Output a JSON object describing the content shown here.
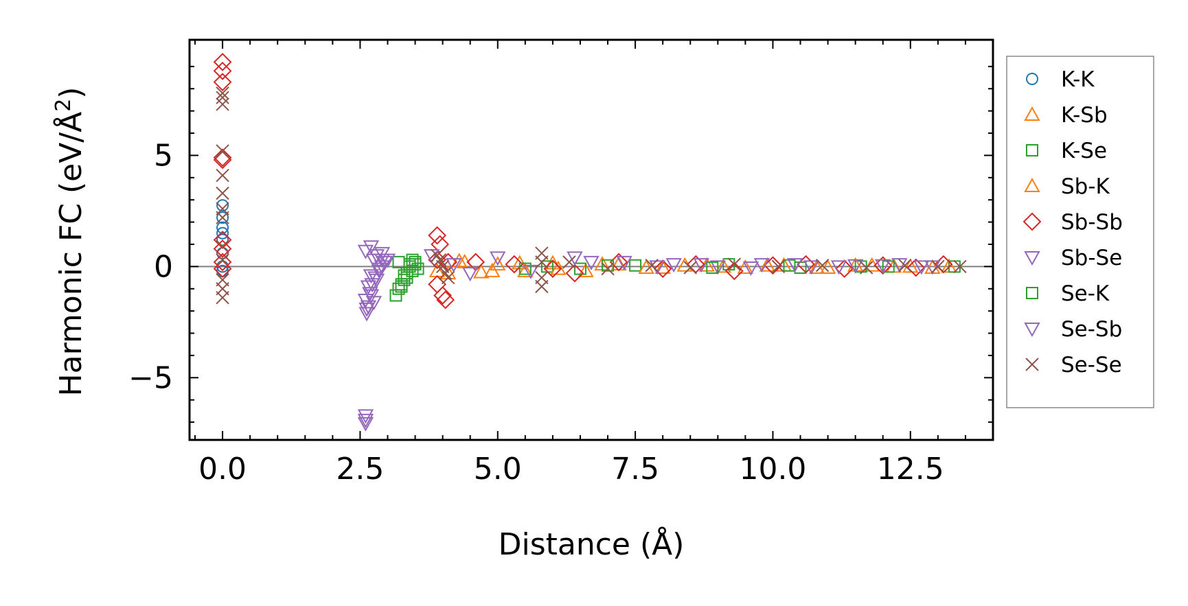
{
  "chart_data": {
    "type": "scatter",
    "title": "",
    "xlabel": "Distance (Å)",
    "ylabel_main": "Harmonic FC (eV/Å",
    "ylabel_sup": "2",
    "ylabel_close": ")",
    "xlim": [
      -0.6,
      14.0
    ],
    "ylim": [
      -7.8,
      10.2
    ],
    "xticks": [
      0.0,
      2.5,
      5.0,
      7.5,
      10.0,
      12.5
    ],
    "xtick_labels": [
      "0.0",
      "2.5",
      "5.0",
      "7.5",
      "10.0",
      "12.5"
    ],
    "yticks": [
      -5,
      0,
      5
    ],
    "ytick_labels": [
      "−5",
      "0",
      "5"
    ],
    "zero_line": 0,
    "legend_position": "outside-right",
    "series": [
      {
        "name": "K-K",
        "marker": "circle",
        "color": "#1f77b4",
        "x": [
          0,
          0,
          0,
          0,
          0,
          0,
          0,
          0
        ],
        "y": [
          2.75,
          2.2,
          1.75,
          1.5,
          1.2,
          0.6,
          0.0,
          -0.2
        ]
      },
      {
        "name": "K-Sb",
        "marker": "triangle-up",
        "color": "#ff7f0e",
        "x": [
          3.9,
          4.1,
          4.4,
          4.7,
          5.0,
          5.5,
          6.0,
          6.6,
          7.2,
          8.0,
          8.8,
          9.5,
          10.2,
          11.0,
          11.8,
          12.5,
          13.2
        ],
        "y": [
          -0.2,
          -0.3,
          0.2,
          -0.25,
          0.1,
          -0.2,
          0.15,
          -0.2,
          0.1,
          -0.05,
          0.05,
          -0.05,
          0.05,
          -0.05,
          0.05,
          0.0,
          0.0
        ]
      },
      {
        "name": "K-Se",
        "marker": "square",
        "color": "#2ca02c",
        "x": [
          3.15,
          3.2,
          3.25,
          3.3,
          3.35,
          3.4,
          3.45,
          3.5,
          3.55,
          3.2,
          3.3,
          3.4,
          5.9,
          6.5,
          7.5,
          9.2,
          10.5,
          11.6,
          13.3
        ],
        "y": [
          -1.3,
          -1.0,
          -0.8,
          -0.6,
          -0.3,
          0.1,
          0.3,
          0.2,
          -0.1,
          0.2,
          -0.4,
          0.0,
          0.0,
          -0.1,
          0.05,
          0.1,
          -0.05,
          0.0,
          0.0
        ]
      },
      {
        "name": "Sb-K",
        "marker": "triangle-up",
        "color": "#ff7f0e",
        "x": [
          4.3,
          4.9,
          5.4,
          6.1,
          6.9,
          7.7,
          8.4,
          9.1,
          9.9,
          10.8,
          11.5,
          12.2,
          12.9
        ],
        "y": [
          0.25,
          -0.2,
          0.15,
          -0.1,
          0.1,
          -0.05,
          0.05,
          0.0,
          0.05,
          -0.05,
          0.05,
          0.0,
          -0.05
        ]
      },
      {
        "name": "Sb-Sb",
        "marker": "diamond",
        "color": "#d62728",
        "x": [
          0,
          0,
          0,
          0,
          0,
          0,
          0,
          0,
          0,
          3.9,
          3.95,
          4.0,
          4.05,
          3.9,
          4.1,
          3.9,
          4.6,
          5.3,
          6.0,
          6.4,
          7.2,
          8.0,
          8.6,
          9.3,
          10.0,
          10.6,
          11.3,
          12.0,
          12.6,
          13.1
        ],
        "y": [
          9.2,
          8.8,
          8.3,
          4.9,
          4.8,
          1.2,
          0.8,
          0.2,
          -0.1,
          1.4,
          1.0,
          -1.3,
          -1.5,
          -0.8,
          0.2,
          0.3,
          0.2,
          0.1,
          -0.1,
          -0.3,
          0.2,
          -0.1,
          0.1,
          -0.2,
          0.05,
          0.1,
          -0.1,
          0.05,
          -0.05,
          0.1
        ]
      },
      {
        "name": "Sb-Se",
        "marker": "triangle-down",
        "color": "#9467bd",
        "x": [
          2.6,
          2.6,
          2.6,
          2.62,
          2.65,
          2.6,
          2.7,
          2.75,
          2.65,
          2.8,
          2.7,
          2.85,
          2.9,
          2.95,
          2.75,
          2.8,
          2.6,
          2.7,
          2.9,
          3.0,
          3.8,
          4.5,
          5.0,
          6.4,
          7.3,
          8.2,
          9.0,
          9.8,
          10.7,
          11.5,
          12.3,
          12.9
        ],
        "y": [
          -6.7,
          -6.9,
          -7.05,
          -2.1,
          -1.8,
          -1.5,
          -1.3,
          -1.6,
          -0.9,
          -0.6,
          -0.4,
          -0.2,
          0.0,
          0.2,
          0.3,
          0.5,
          0.7,
          0.9,
          0.6,
          0.3,
          0.5,
          -0.3,
          0.4,
          0.4,
          0.2,
          0.1,
          0.0,
          0.1,
          0.0,
          0.05,
          0.1,
          0.0
        ]
      },
      {
        "name": "Se-K",
        "marker": "square",
        "color": "#2ca02c",
        "x": [
          3.25,
          3.35,
          3.45,
          3.5,
          5.5,
          7.0,
          8.9,
          10.3,
          12.1
        ],
        "y": [
          -0.9,
          -0.5,
          -0.2,
          0.1,
          -0.1,
          0.05,
          -0.05,
          0.05,
          0.0
        ]
      },
      {
        "name": "Se-Sb",
        "marker": "triangle-down",
        "color": "#9467bd",
        "x": [
          2.62,
          2.68,
          2.72,
          2.78,
          2.85,
          2.9,
          4.2,
          5.6,
          6.7,
          7.9,
          8.7,
          9.6,
          10.4,
          11.2,
          12.0,
          12.7
        ],
        "y": [
          -1.9,
          -1.2,
          -0.8,
          -0.5,
          -0.1,
          0.3,
          0.1,
          -0.2,
          0.2,
          0.0,
          0.1,
          -0.05,
          0.1,
          0.0,
          0.05,
          0.0
        ]
      },
      {
        "name": "Se-Se",
        "marker": "x",
        "color": "#8c564b",
        "x": [
          0,
          0,
          0,
          0,
          0,
          0,
          0,
          0,
          0,
          0,
          0,
          0,
          0,
          3.9,
          4.0,
          4.1,
          3.95,
          4.05,
          5.8,
          5.8,
          5.8,
          5.8,
          6.3,
          7.0,
          7.8,
          8.5,
          9.3,
          10.1,
          10.9,
          11.7,
          12.4,
          13.0,
          13.4
        ],
        "y": [
          7.8,
          7.6,
          7.3,
          5.2,
          4.1,
          3.3,
          2.6,
          2.2,
          0.9,
          0.3,
          -0.6,
          -1.0,
          -1.4,
          0.5,
          0.0,
          -0.5,
          0.3,
          -0.3,
          0.6,
          0.2,
          -0.5,
          -0.9,
          0.2,
          -0.1,
          0.05,
          -0.05,
          0.1,
          0.0,
          0.05,
          -0.05,
          0.05,
          0.0,
          0.0
        ]
      }
    ]
  }
}
